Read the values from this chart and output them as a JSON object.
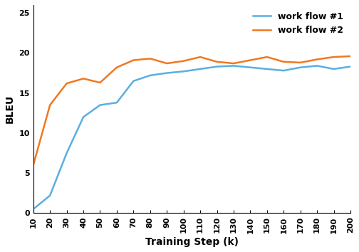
{
  "x": [
    10,
    20,
    30,
    40,
    50,
    60,
    70,
    80,
    90,
    100,
    110,
    120,
    130,
    140,
    150,
    160,
    170,
    180,
    190,
    200
  ],
  "workflow1": [
    0.5,
    2.2,
    7.5,
    12.0,
    13.5,
    13.8,
    16.5,
    17.2,
    17.5,
    17.7,
    18.0,
    18.3,
    18.4,
    18.2,
    18.0,
    17.8,
    18.2,
    18.4,
    18.0,
    18.3
  ],
  "workflow2": [
    6.0,
    13.5,
    16.2,
    16.8,
    16.3,
    18.2,
    19.1,
    19.3,
    18.7,
    19.0,
    19.5,
    18.9,
    18.7,
    19.1,
    19.5,
    18.9,
    18.8,
    19.2,
    19.5,
    19.6
  ],
  "color1": "#5aafe0",
  "color2": "#f07820",
  "label1": "work flow #1",
  "label2": "work flow #2",
  "xlabel": "Training Step (k)",
  "ylabel": "BLEU",
  "ylim": [
    0,
    26
  ],
  "yticks": [
    0,
    5,
    10,
    15,
    20,
    25
  ],
  "xticks": [
    10,
    20,
    30,
    40,
    50,
    60,
    70,
    80,
    90,
    100,
    110,
    120,
    130,
    140,
    150,
    160,
    170,
    180,
    190,
    200
  ],
  "linewidth": 1.8,
  "legend_fontsize": 9,
  "axis_label_fontsize": 10,
  "tick_fontsize": 8
}
